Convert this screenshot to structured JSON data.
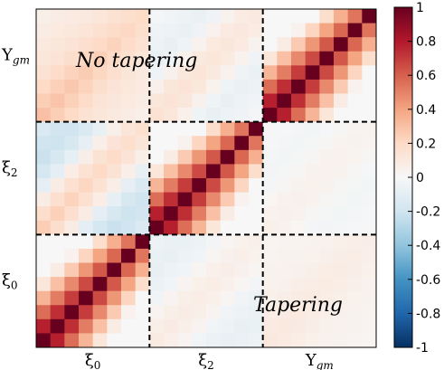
{
  "chart_data": {
    "type": "heatmap",
    "matrix_size": 24,
    "blocks": [
      {
        "name": "ξ0",
        "size": 8
      },
      {
        "name": "ξ2",
        "size": 8
      },
      {
        "name": "Υgm",
        "size": 8
      }
    ],
    "x_tick_labels": [
      {
        "base": "ξ",
        "sub": "0"
      },
      {
        "base": "ξ",
        "sub": "2"
      },
      {
        "base": "Υ",
        "sub": "gm"
      }
    ],
    "y_tick_labels": [
      {
        "base": "Υ",
        "sub": "gm"
      },
      {
        "base": "ξ",
        "sub": "2"
      },
      {
        "base": "ξ",
        "sub": "0"
      }
    ],
    "annotations": {
      "upper": "No tapering",
      "lower": "Tapering"
    },
    "colorbar": {
      "range": [
        -1,
        1
      ],
      "ticks": [
        "-1",
        "-0.8",
        "-0.6",
        "-0.4",
        "-0.2",
        "0",
        "0.2",
        "0.4",
        "0.6",
        "0.8",
        "1"
      ],
      "colormap": "RdBu_r",
      "low_color": "#053061",
      "mid_color": "#f7f7f7",
      "high_color": "#67001f"
    },
    "correlation_model": {
      "diag_self": [
        0.82,
        0.78,
        0.65,
        0.55,
        0.45,
        0.35,
        0.25,
        0.15
      ],
      "diag_cross_02": [
        0.25,
        0.18,
        0.08,
        -0.1,
        -0.18,
        -0.22,
        -0.2,
        -0.15
      ],
      "diag_cross_0gm": [
        0.3,
        0.25,
        0.2,
        0.15,
        0.12,
        0.1,
        0.08,
        0.06
      ],
      "diag_cross_2gm": [
        0.15,
        0.12,
        0.05,
        -0.05,
        -0.08,
        -0.06,
        -0.04,
        -0.02
      ]
    },
    "dividers": "dashed black lines between blocks"
  }
}
